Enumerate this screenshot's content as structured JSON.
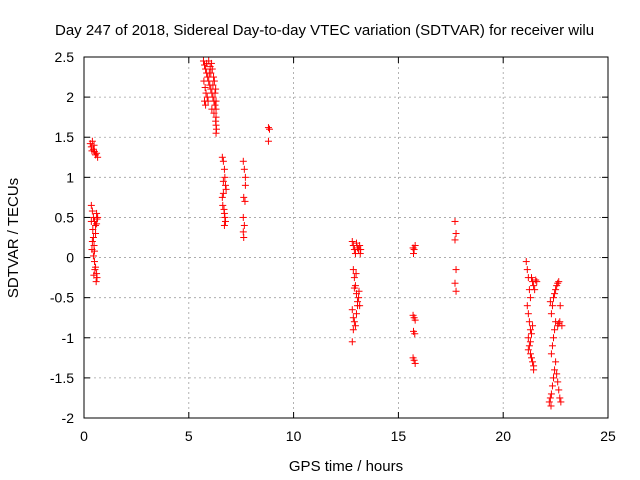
{
  "chart_data": {
    "type": "scatter",
    "title": "Day 247 of 2018, Sidereal Day-to-day VTEC variation (SDTVAR) for receiver wilu",
    "xlabel": "GPS time / hours",
    "ylabel": "SDTVAR / TECUs",
    "xlim": [
      0,
      25
    ],
    "ylim": [
      -2,
      2.5
    ],
    "xticks": [
      0,
      5,
      10,
      15,
      20,
      25
    ],
    "xtick_labels": [
      "0",
      "5",
      "10",
      "15",
      "20",
      "25"
    ],
    "yticks": [
      -2,
      -1.5,
      -1,
      -0.5,
      0,
      0.5,
      1,
      1.5,
      2,
      2.5
    ],
    "ytick_labels": [
      "-2",
      "-1.5",
      "-1",
      "-0.5",
      "0",
      "0.5",
      "1",
      "1.5",
      "2",
      "2.5"
    ],
    "grid": true,
    "marker": "plus",
    "color": "#ff0000",
    "series": [
      {
        "name": "SDTVAR",
        "points": [
          [
            0.3,
            1.42
          ],
          [
            0.35,
            1.38
          ],
          [
            0.4,
            1.45
          ],
          [
            0.45,
            1.35
          ],
          [
            0.5,
            1.32
          ],
          [
            0.55,
            1.28
          ],
          [
            0.6,
            1.3
          ],
          [
            0.65,
            1.25
          ],
          [
            0.38,
            1.33
          ],
          [
            0.48,
            1.4
          ],
          [
            0.35,
            0.65
          ],
          [
            0.4,
            0.58
          ],
          [
            0.45,
            0.5
          ],
          [
            0.5,
            0.45
          ],
          [
            0.55,
            0.4
          ],
          [
            0.6,
            0.55
          ],
          [
            0.65,
            0.5
          ],
          [
            0.42,
            0.35
          ],
          [
            0.45,
            0.25
          ],
          [
            0.48,
            0.15
          ],
          [
            0.5,
            0.08
          ],
          [
            0.45,
            0.02
          ],
          [
            0.5,
            -0.05
          ],
          [
            0.55,
            -0.12
          ],
          [
            0.6,
            -0.2
          ],
          [
            0.62,
            -0.25
          ],
          [
            0.58,
            -0.3
          ],
          [
            0.4,
            0.2
          ],
          [
            0.38,
            0.1
          ],
          [
            0.52,
            -0.15
          ],
          [
            0.55,
            0.3
          ],
          [
            0.6,
            0.42
          ],
          [
            0.62,
            0.48
          ],
          [
            0.35,
            0.45
          ],
          [
            0.47,
            -0.22
          ],
          [
            5.7,
            2.45
          ],
          [
            5.75,
            2.4
          ],
          [
            5.8,
            2.35
          ],
          [
            5.85,
            2.3
          ],
          [
            5.9,
            2.25
          ],
          [
            5.95,
            2.2
          ],
          [
            6.0,
            2.15
          ],
          [
            6.05,
            2.1
          ],
          [
            6.1,
            2.05
          ],
          [
            6.15,
            2.0
          ],
          [
            6.2,
            1.95
          ],
          [
            6.25,
            1.9
          ],
          [
            6.3,
            1.85
          ],
          [
            6.3,
            1.75
          ],
          [
            6.3,
            1.65
          ],
          [
            6.3,
            1.55
          ],
          [
            5.72,
            2.2
          ],
          [
            5.78,
            2.12
          ],
          [
            5.82,
            2.05
          ],
          [
            5.88,
            2.0
          ],
          [
            5.92,
            1.95
          ],
          [
            5.98,
            2.3
          ],
          [
            6.02,
            2.38
          ],
          [
            6.08,
            2.42
          ],
          [
            6.12,
            2.35
          ],
          [
            6.18,
            2.25
          ],
          [
            6.22,
            2.2
          ],
          [
            6.28,
            2.1
          ],
          [
            5.75,
            1.95
          ],
          [
            5.85,
            2.42
          ],
          [
            5.95,
            2.45
          ],
          [
            6.05,
            2.3
          ],
          [
            6.15,
            2.15
          ],
          [
            6.25,
            2.05
          ],
          [
            6.3,
            1.95
          ],
          [
            5.8,
            1.9
          ],
          [
            6.1,
            1.85
          ],
          [
            6.2,
            1.8
          ],
          [
            6.28,
            1.7
          ],
          [
            6.32,
            1.6
          ],
          [
            6.6,
            1.25
          ],
          [
            6.65,
            1.2
          ],
          [
            6.7,
            1.1
          ],
          [
            6.72,
            1.0
          ],
          [
            6.75,
            0.9
          ],
          [
            6.65,
            0.8
          ],
          [
            6.6,
            0.75
          ],
          [
            6.62,
            0.65
          ],
          [
            6.68,
            0.6
          ],
          [
            6.7,
            0.55
          ],
          [
            6.72,
            0.5
          ],
          [
            6.75,
            0.45
          ],
          [
            6.7,
            0.4
          ],
          [
            6.65,
            0.95
          ],
          [
            6.78,
            0.85
          ],
          [
            7.6,
            1.2
          ],
          [
            7.65,
            1.1
          ],
          [
            7.7,
            1.0
          ],
          [
            7.62,
            0.75
          ],
          [
            7.68,
            0.7
          ],
          [
            7.6,
            0.5
          ],
          [
            7.65,
            0.4
          ],
          [
            7.6,
            0.32
          ],
          [
            7.62,
            0.25
          ],
          [
            7.7,
            0.9
          ],
          [
            8.8,
            1.62
          ],
          [
            8.85,
            1.6
          ],
          [
            8.8,
            1.45
          ],
          [
            12.8,
            0.2
          ],
          [
            12.85,
            0.15
          ],
          [
            12.9,
            0.1
          ],
          [
            12.95,
            0.05
          ],
          [
            13.0,
            0.18
          ],
          [
            13.05,
            0.12
          ],
          [
            13.1,
            0.1
          ],
          [
            13.15,
            0.15
          ],
          [
            13.2,
            0.1
          ],
          [
            12.85,
            -0.15
          ],
          [
            12.9,
            -0.25
          ],
          [
            12.95,
            -0.35
          ],
          [
            13.0,
            -0.45
          ],
          [
            13.05,
            -0.55
          ],
          [
            13.1,
            -0.5
          ],
          [
            13.15,
            -0.6
          ],
          [
            12.8,
            -0.65
          ],
          [
            12.85,
            -0.75
          ],
          [
            12.9,
            -0.8
          ],
          [
            12.95,
            -0.85
          ],
          [
            13.0,
            -0.7
          ],
          [
            13.05,
            -0.6
          ],
          [
            12.8,
            -1.05
          ],
          [
            12.85,
            -0.9
          ],
          [
            12.9,
            -0.38
          ],
          [
            13.12,
            -0.42
          ],
          [
            13.18,
            0.05
          ],
          [
            12.98,
            -0.2
          ],
          [
            15.7,
            0.12
          ],
          [
            15.75,
            0.1
          ],
          [
            15.8,
            0.15
          ],
          [
            15.72,
            0.05
          ],
          [
            15.7,
            -0.72
          ],
          [
            15.75,
            -0.75
          ],
          [
            15.8,
            -0.78
          ],
          [
            15.72,
            -0.92
          ],
          [
            15.78,
            -0.95
          ],
          [
            15.7,
            -1.25
          ],
          [
            15.75,
            -1.28
          ],
          [
            15.8,
            -1.32
          ],
          [
            17.7,
            0.45
          ],
          [
            17.75,
            0.3
          ],
          [
            17.7,
            0.22
          ],
          [
            17.75,
            -0.15
          ],
          [
            17.7,
            -0.32
          ],
          [
            17.75,
            -0.42
          ],
          [
            21.1,
            -0.05
          ],
          [
            21.15,
            -0.15
          ],
          [
            21.2,
            -0.25
          ],
          [
            21.25,
            -0.4
          ],
          [
            21.3,
            -0.5
          ],
          [
            21.15,
            -0.6
          ],
          [
            21.2,
            -0.7
          ],
          [
            21.25,
            -0.8
          ],
          [
            21.3,
            -0.9
          ],
          [
            21.2,
            -1.0
          ],
          [
            21.25,
            -1.1
          ],
          [
            21.3,
            -1.2
          ],
          [
            21.35,
            -1.25
          ],
          [
            21.4,
            -1.3
          ],
          [
            21.45,
            -1.35
          ],
          [
            21.2,
            -1.15
          ],
          [
            21.3,
            -1.05
          ],
          [
            21.35,
            -0.95
          ],
          [
            21.4,
            -0.85
          ],
          [
            21.35,
            -0.25
          ],
          [
            21.4,
            -0.3
          ],
          [
            21.45,
            -0.35
          ],
          [
            21.5,
            -0.4
          ],
          [
            21.55,
            -0.28
          ],
          [
            21.6,
            -0.3
          ],
          [
            21.45,
            -1.4
          ],
          [
            22.2,
            -1.8
          ],
          [
            22.25,
            -1.75
          ],
          [
            22.3,
            -1.7
          ],
          [
            22.35,
            -1.6
          ],
          [
            22.4,
            -1.5
          ],
          [
            22.45,
            -1.4
          ],
          [
            22.5,
            -1.3
          ],
          [
            22.3,
            -1.2
          ],
          [
            22.35,
            -1.1
          ],
          [
            22.4,
            -1.0
          ],
          [
            22.45,
            -0.9
          ],
          [
            22.5,
            -0.8
          ],
          [
            22.3,
            -0.7
          ],
          [
            22.35,
            -0.6
          ],
          [
            22.4,
            -0.5
          ],
          [
            22.45,
            -0.45
          ],
          [
            22.5,
            -0.4
          ],
          [
            22.55,
            -0.35
          ],
          [
            22.6,
            -0.32
          ],
          [
            22.65,
            -0.3
          ],
          [
            22.6,
            -1.55
          ],
          [
            22.65,
            -1.65
          ],
          [
            22.7,
            -1.75
          ],
          [
            22.75,
            -1.8
          ],
          [
            22.6,
            -0.85
          ],
          [
            22.65,
            -0.82
          ],
          [
            22.7,
            -0.8
          ],
          [
            22.25,
            -0.55
          ],
          [
            22.55,
            -1.45
          ],
          [
            22.72,
            -0.6
          ],
          [
            22.8,
            -0.85
          ],
          [
            22.28,
            -1.85
          ]
        ]
      }
    ]
  }
}
